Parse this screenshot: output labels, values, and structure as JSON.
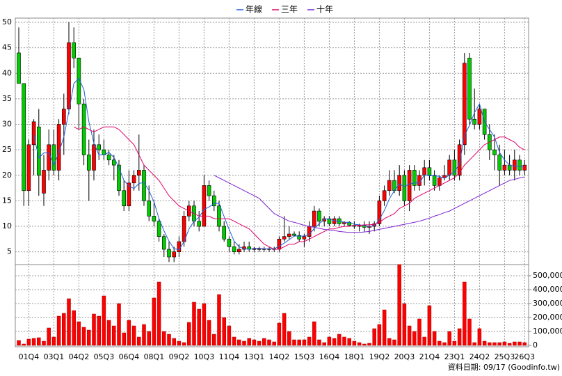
{
  "chart_data": {
    "type": "candlestick",
    "footnote": "資料日期: 09/17 (Goodinfo.tw)",
    "categories": [
      null,
      null,
      "01Q4",
      null,
      null,
      null,
      null,
      "03Q1",
      null,
      null,
      null,
      null,
      "04Q2",
      null,
      null,
      null,
      null,
      "05Q3",
      null,
      null,
      null,
      null,
      "06Q4",
      null,
      null,
      null,
      null,
      "08Q1",
      null,
      null,
      null,
      null,
      "09Q2",
      null,
      null,
      null,
      null,
      "10Q3",
      null,
      null,
      null,
      null,
      "11Q4",
      null,
      null,
      null,
      null,
      "13Q1",
      null,
      null,
      null,
      null,
      "14Q2",
      null,
      null,
      null,
      null,
      "15Q3",
      null,
      null,
      null,
      null,
      "16Q4",
      null,
      null,
      null,
      null,
      "18Q1",
      null,
      null,
      null,
      null,
      "19Q2",
      null,
      null,
      null,
      null,
      "20Q3",
      null,
      null,
      null,
      null,
      "21Q4",
      null,
      null,
      null,
      null,
      "23Q1",
      null,
      null,
      null,
      null,
      "24Q2",
      null,
      null,
      null,
      null,
      "25Q3",
      null,
      null,
      null,
      "26Q3"
    ],
    "open": [
      44,
      38,
      17,
      26,
      29.5,
      16.5,
      21,
      26,
      21,
      30,
      33,
      46,
      43,
      34,
      24,
      21,
      26,
      25,
      24,
      23,
      22,
      17,
      14,
      18.5,
      20,
      21,
      15,
      12,
      11,
      8,
      5.5,
      4,
      5,
      7,
      12,
      14,
      11,
      10,
      18,
      16,
      14,
      10,
      7.5,
      6,
      5,
      5.5,
      6,
      5.5,
      5.6,
      5.6,
      5.6,
      5.6,
      5.5,
      7.5,
      8,
      8.5,
      8.2,
      7.5,
      8,
      10,
      13,
      11,
      11.5,
      10.5,
      11.5,
      10.5,
      10.8,
      10.2,
      10,
      10.2,
      9.8,
      10,
      10.5,
      15,
      17,
      19,
      17,
      20,
      15,
      21,
      18,
      20,
      21.5,
      20,
      18,
      19.5,
      20,
      23,
      20,
      26,
      43,
      31,
      30,
      33,
      28,
      25,
      24,
      21,
      22,
      21,
      23,
      21
    ],
    "high": [
      49,
      38,
      27,
      31,
      33,
      24,
      29,
      29,
      31,
      36,
      50,
      49,
      43,
      35,
      27,
      29,
      28,
      27,
      25,
      24,
      23,
      19,
      21,
      21,
      28,
      22,
      18,
      15,
      11.5,
      8.5,
      7,
      6,
      8,
      13,
      15,
      15,
      13,
      20,
      19,
      17,
      15,
      11,
      8,
      7,
      6.5,
      7,
      7,
      6,
      6,
      6,
      6,
      6,
      8,
      12,
      10,
      9,
      9,
      8.5,
      11,
      14,
      13.5,
      12,
      12,
      12,
      12,
      11,
      11,
      11,
      10.5,
      11,
      11,
      11,
      16,
      18,
      21,
      21,
      22,
      21,
      22,
      22,
      21,
      23,
      23,
      21,
      20,
      22,
      24,
      25,
      27,
      44,
      44,
      37,
      34,
      33,
      30,
      28,
      26,
      25,
      24,
      25,
      24,
      23
    ],
    "low": [
      38,
      14,
      14,
      20,
      16,
      14,
      19,
      20,
      19,
      24,
      32,
      41,
      29,
      22,
      15,
      19,
      23,
      23,
      22,
      19,
      16,
      13,
      13,
      17,
      17,
      14,
      11,
      10,
      7,
      4,
      3,
      3,
      4,
      6,
      11,
      10,
      9,
      10,
      15,
      13,
      9,
      7,
      5,
      4.5,
      4.5,
      5,
      5,
      5,
      5,
      5,
      5,
      5,
      5,
      7,
      7.5,
      8,
      7,
      6,
      7,
      9,
      10,
      10,
      10,
      10,
      10,
      10,
      10,
      9.5,
      9,
      9,
      8.5,
      9,
      10,
      14,
      16,
      16.5,
      16,
      14,
      13,
      17,
      17,
      18,
      19,
      17,
      17,
      19,
      19,
      19,
      19,
      24,
      30,
      29,
      29,
      27,
      23,
      21,
      18,
      20,
      20,
      19,
      20,
      20
    ],
    "close": [
      38,
      17,
      26,
      30.5,
      20,
      21,
      26,
      21,
      30,
      33,
      46,
      43,
      34,
      24,
      21,
      26,
      25,
      24,
      23,
      22,
      17,
      14,
      18.5,
      20,
      21,
      15,
      12,
      11,
      8,
      5.5,
      4,
      5,
      7,
      12,
      14,
      11,
      10,
      18,
      16,
      14,
      10,
      7.5,
      6,
      5,
      5.5,
      6,
      5.5,
      5.6,
      5.6,
      5.6,
      5.6,
      5.6,
      7.5,
      8,
      8.5,
      8.2,
      7.5,
      8,
      10,
      13,
      11,
      11.5,
      10.5,
      11.5,
      10.5,
      10.8,
      10.2,
      10,
      10.2,
      9.8,
      10,
      10.5,
      15,
      17,
      19,
      17,
      20,
      15,
      21,
      18,
      20,
      21.5,
      20,
      18,
      19.5,
      20,
      23,
      20,
      26,
      42,
      31,
      30,
      33,
      28,
      25,
      24,
      21,
      22,
      21,
      23,
      21,
      22
    ],
    "volume": [
      35000,
      10000,
      45000,
      50000,
      55000,
      30000,
      125000,
      60000,
      210000,
      230000,
      335000,
      250000,
      170000,
      130000,
      110000,
      225000,
      210000,
      355000,
      180000,
      140000,
      300000,
      90000,
      180000,
      140000,
      60000,
      150000,
      100000,
      340000,
      455000,
      100000,
      80000,
      50000,
      30000,
      20000,
      165000,
      310000,
      260000,
      300000,
      180000,
      80000,
      365000,
      200000,
      140000,
      60000,
      40000,
      30000,
      50000,
      40000,
      30000,
      50000,
      40000,
      25000,
      160000,
      230000,
      100000,
      40000,
      40000,
      40000,
      60000,
      170000,
      40000,
      20000,
      60000,
      50000,
      80000,
      60000,
      50000,
      30000,
      20000,
      10000,
      15000,
      120000,
      150000,
      255000,
      50000,
      40000,
      580000,
      300000,
      140000,
      100000,
      190000,
      60000,
      285000,
      100000,
      30000,
      20000,
      100000,
      30000,
      120000,
      455000,
      190000,
      20000,
      120000,
      30000,
      20000,
      20000,
      20000,
      25000,
      15000,
      25000,
      25000,
      20000
    ],
    "up_color": "#ff0000",
    "down_color": "#00cc00",
    "volume_color": "#ff0000",
    "series": [
      {
        "name": "年線",
        "color": "#1e5fd8",
        "values": [
          null,
          null,
          null,
          27.9,
          23.4,
          24.4,
          24.4,
          22,
          24.5,
          27.5,
          32.5,
          38,
          39,
          36.8,
          30.5,
          26.3,
          24,
          24,
          24.5,
          23.5,
          21.5,
          19,
          17.9,
          17.4,
          18.4,
          18.6,
          17,
          14.8,
          11.5,
          9.1,
          7.1,
          5.6,
          5.4,
          7,
          9.5,
          11,
          11.8,
          13.3,
          13.8,
          14.5,
          14.5,
          11.9,
          9.4,
          7.1,
          6,
          5.6,
          5.5,
          5.7,
          5.7,
          5.6,
          5.6,
          5.6,
          6.1,
          6.7,
          7.4,
          8.1,
          8.1,
          8.1,
          8.4,
          9.6,
          10.5,
          11.4,
          11.5,
          11.1,
          11,
          10.8,
          10.8,
          10.4,
          10.3,
          10.1,
          10,
          10.1,
          11.3,
          13.1,
          15.4,
          17,
          18.3,
          17.8,
          18.3,
          18.5,
          18.5,
          20.1,
          19.9,
          19.9,
          19.8,
          19.4,
          20.1,
          20.6,
          22.3,
          27.8,
          29.8,
          32.3,
          34,
          30.5,
          29,
          27.5,
          24.5,
          23,
          22,
          21.8,
          21.8,
          21.8
        ]
      },
      {
        "name": "三年",
        "color": "#e0006a",
        "values": [
          null,
          null,
          null,
          null,
          null,
          null,
          null,
          null,
          null,
          null,
          null,
          29.5,
          29,
          29.5,
          29,
          28.5,
          29,
          29.5,
          29.5,
          29.5,
          29,
          28,
          27,
          26,
          24,
          22,
          21,
          20,
          19,
          17.5,
          16,
          15,
          14,
          13.5,
          13,
          12.5,
          12,
          12,
          12,
          11.5,
          11.5,
          11.5,
          11.5,
          11,
          10.5,
          10,
          9.5,
          8.5,
          7.5,
          6.5,
          6,
          5.5,
          5.5,
          6,
          6.5,
          6.5,
          7,
          7,
          7.5,
          8,
          8.5,
          9,
          9.5,
          9.5,
          9.8,
          10,
          10,
          10.2,
          10.2,
          10.3,
          10.3,
          10.4,
          10.8,
          11.5,
          12,
          12.5,
          13.5,
          14,
          14.5,
          15.5,
          16,
          16.5,
          17,
          17.5,
          18,
          18.5,
          19,
          19.5,
          20.5,
          22,
          23,
          24,
          25,
          26,
          26.5,
          27,
          27.5,
          27.5,
          27,
          26.5,
          25.5,
          25
        ]
      },
      {
        "name": "十年",
        "color": "#7b22d4",
        "values": [
          null,
          null,
          null,
          null,
          null,
          null,
          null,
          null,
          null,
          null,
          null,
          null,
          null,
          null,
          null,
          null,
          null,
          null,
          null,
          null,
          null,
          null,
          null,
          null,
          null,
          null,
          null,
          null,
          null,
          null,
          null,
          null,
          null,
          null,
          null,
          null,
          null,
          null,
          null,
          20,
          19.5,
          19,
          18.5,
          18,
          17.5,
          17,
          16.5,
          16,
          15.5,
          14.5,
          13.5,
          12.5,
          12,
          11.5,
          11,
          10.8,
          10.5,
          10.2,
          10,
          9.8,
          9.6,
          9.4,
          9.3,
          9.2,
          9,
          8.9,
          8.8,
          8.8,
          8.8,
          8.9,
          9,
          9.2,
          9.4,
          9.6,
          9.8,
          10,
          10.2,
          10.4,
          10.6,
          10.8,
          11,
          11.3,
          11.6,
          12,
          12.3,
          12.7,
          13,
          13.5,
          14,
          14.5,
          15,
          15.5,
          16,
          16.5,
          17,
          17.5,
          18,
          18.5,
          19,
          19.2,
          19.5,
          19.7
        ]
      }
    ],
    "ylim": [
      2.5,
      50
    ],
    "yticks": [
      5,
      10,
      15,
      20,
      25,
      30,
      35,
      40,
      45,
      50
    ],
    "y2lim": [
      0,
      580000
    ],
    "y2ticks": [
      0,
      {
        "value": 100000,
        "label": "100,000"
      },
      {
        "value": 200000,
        "label": "200,000"
      },
      {
        "value": 300000,
        "label": "300,000"
      },
      {
        "value": 400000,
        "label": "400,000"
      },
      {
        "value": 500000,
        "label": "500,000"
      }
    ],
    "grid": true,
    "legend": "top"
  }
}
